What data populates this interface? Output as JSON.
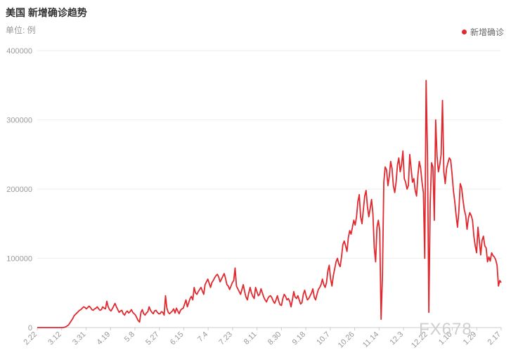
{
  "title": "美国 新增确诊趋势",
  "unit_label": "单位: 例",
  "legend_label": "新增确诊",
  "watermark": "FX678",
  "colors": {
    "line": "#e0282e",
    "grid": "#eeeeee",
    "axis": "#cccccc",
    "tick_text": "#999999"
  },
  "chart_data": {
    "type": "line",
    "title": "美国 新增确诊趋势",
    "ylabel": "单位: 例",
    "ylim": [
      0,
      400000
    ],
    "yticks": [
      0,
      100000,
      200000,
      300000,
      400000
    ],
    "ytick_labels": [
      "0",
      "100000",
      "200000",
      "300000",
      "400000"
    ],
    "xticks": [
      "2.22",
      "3.12",
      "3.31",
      "4.19",
      "5.8",
      "5.27",
      "6.15",
      "7.4",
      "7.23",
      "8.11",
      "8.30",
      "9.18",
      "10.7",
      "10.26",
      "11.14",
      "12.3",
      "12.22",
      "1.10",
      "1.29",
      "2.17"
    ],
    "grid": true,
    "legend_position": "top-right",
    "series": [
      {
        "name": "新增确诊",
        "color": "#e0282e",
        "values": [
          0,
          0,
          0,
          0,
          0,
          0,
          0,
          0,
          0,
          0,
          0,
          0,
          0,
          0,
          0,
          0,
          0,
          0,
          0,
          0,
          500,
          1200,
          2500,
          4000,
          7000,
          10000,
          13000,
          17000,
          19000,
          21000,
          23000,
          25000,
          26000,
          28000,
          30000,
          29000,
          27000,
          29000,
          31000,
          29000,
          26000,
          25000,
          27000,
          28000,
          30000,
          27000,
          25000,
          26000,
          30000,
          28000,
          27000,
          38000,
          30000,
          26000,
          24000,
          27000,
          31000,
          35000,
          30000,
          26000,
          22000,
          24000,
          25000,
          20000,
          18000,
          22000,
          24000,
          21000,
          23000,
          26000,
          22000,
          20000,
          18000,
          14000,
          10000,
          8000,
          22000,
          26000,
          20000,
          18000,
          21000,
          23000,
          30000,
          25000,
          22000,
          20000,
          24000,
          25000,
          22000,
          20000,
          20000,
          23000,
          22000,
          18000,
          46000,
          28000,
          22000,
          20000,
          22000,
          24000,
          27000,
          21000,
          28000,
          24000,
          20000,
          25000,
          27000,
          28000,
          34000,
          40000,
          30000,
          36000,
          42000,
          45000,
          40000,
          58000,
          50000,
          48000,
          52000,
          55000,
          58000,
          53000,
          48000,
          62000,
          66000,
          70000,
          64000,
          58000,
          65000,
          68000,
          72000,
          75000,
          77000,
          73000,
          66000,
          70000,
          74000,
          78000,
          71000,
          62000,
          60000,
          55000,
          60000,
          65000,
          68000,
          86000,
          60000,
          56000,
          52000,
          48000,
          55000,
          62000,
          52000,
          44000,
          40000,
          50000,
          58000,
          50000,
          45000,
          42000,
          58000,
          52000,
          46000,
          48000,
          56000,
          50000,
          44000,
          40000,
          37000,
          42000,
          45000,
          46000,
          43000,
          38000,
          35000,
          40000,
          46000,
          38000,
          33000,
          32000,
          42000,
          48000,
          45000,
          40000,
          42000,
          38000,
          30000,
          40000,
          52000,
          44000,
          42000,
          46000,
          40000,
          34000,
          36000,
          48000,
          54000,
          46000,
          40000,
          42000,
          46000,
          50000,
          56000,
          44000,
          40000,
          48000,
          55000,
          58000,
          62000,
          70000,
          62000,
          58000,
          65000,
          82000,
          90000,
          70000,
          60000,
          75000,
          85000,
          95000,
          100000,
          92000,
          88000,
          102000,
          120000,
          125000,
          118000,
          110000,
          130000,
          140000,
          135000,
          145000,
          155000,
          148000,
          160000,
          182000,
          192000,
          160000,
          150000,
          170000,
          190000,
          198000,
          175000,
          160000,
          172000,
          185000,
          165000,
          115000,
          95000,
          145000,
          155000,
          140000,
          12000,
          75000,
          210000,
          232000,
          228000,
          205000,
          218000,
          240000,
          230000,
          205000,
          195000,
          210000,
          235000,
          245000,
          225000,
          235000,
          255000,
          215000,
          210000,
          200000,
          205000,
          250000,
          230000,
          210000,
          215000,
          198000,
          190000,
          220000,
          240000,
          230000,
          210000,
          195000,
          100000,
          357000,
          250000,
          22000,
          180000,
          238000,
          232000,
          155000,
          300000,
          248000,
          225000,
          235000,
          250000,
          328000,
          225000,
          208000,
          230000,
          238000,
          245000,
          242000,
          222000,
          198000,
          182000,
          162000,
          145000,
          168000,
          208000,
          202000,
          185000,
          170000,
          162000,
          142000,
          158000,
          166000,
          162000,
          155000,
          132000,
          118000,
          108000,
          145000,
          125000,
          105000,
          126000,
          132000,
          118000,
          115000,
          95000,
          102000,
          96000,
          108000,
          104000,
          102000,
          98000,
          90000,
          60000,
          68000,
          65000
        ]
      }
    ]
  }
}
